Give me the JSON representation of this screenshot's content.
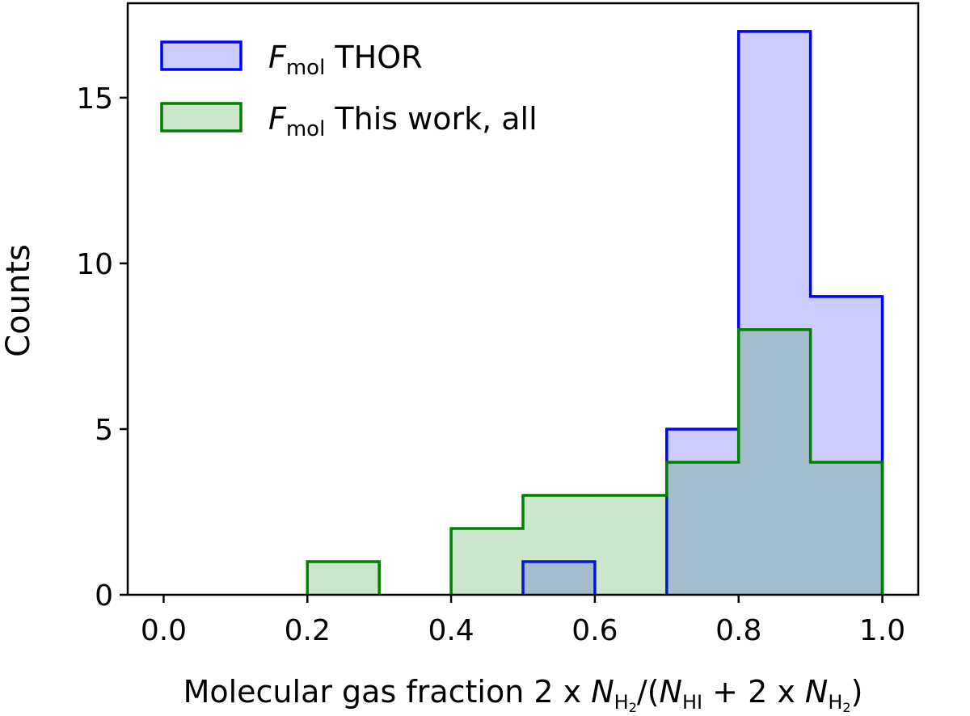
{
  "chart_data": {
    "type": "histogram",
    "xlabel": {
      "pre": "Molecular gas fraction 2 x ",
      "n1": "N",
      "n1_sub": "H",
      "n1_subsub": "2",
      "mid": "/(",
      "n2": "N",
      "n2_sub": "HI",
      "mid2": " + 2 x ",
      "n3": "N",
      "n3_sub": "H",
      "n3_subsub": "2",
      "post": ")"
    },
    "ylabel": "Counts",
    "xlim": [
      -0.05,
      1.05
    ],
    "ylim": [
      0,
      17.85
    ],
    "xticks": [
      0.0,
      0.2,
      0.4,
      0.6,
      0.8,
      1.0
    ],
    "xtick_labels": [
      "0.0",
      "0.2",
      "0.4",
      "0.6",
      "0.8",
      "1.0"
    ],
    "yticks": [
      0,
      5,
      10,
      15
    ],
    "ytick_labels": [
      "0",
      "5",
      "10",
      "15"
    ],
    "bin_edges": [
      0.0,
      0.1,
      0.2,
      0.3,
      0.4,
      0.5,
      0.6,
      0.7,
      0.8,
      0.9,
      1.0
    ],
    "legend_position": "top-left",
    "series": [
      {
        "name": "THOR",
        "legend_symbol": "F",
        "legend_sub": "mol",
        "counts": [
          0,
          0,
          0,
          0,
          0,
          1,
          0,
          5,
          17,
          9
        ],
        "edge_color": "#0000ff",
        "fill_color": "#0000ff",
        "fill_opacity": 0.2
      },
      {
        "name": "This work, all",
        "legend_symbol": "F",
        "legend_sub": "mol",
        "counts": [
          0,
          0,
          1,
          0,
          2,
          3,
          3,
          4,
          8,
          4
        ],
        "edge_color": "#008000",
        "fill_color": "#008000",
        "fill_opacity": 0.2
      }
    ]
  }
}
